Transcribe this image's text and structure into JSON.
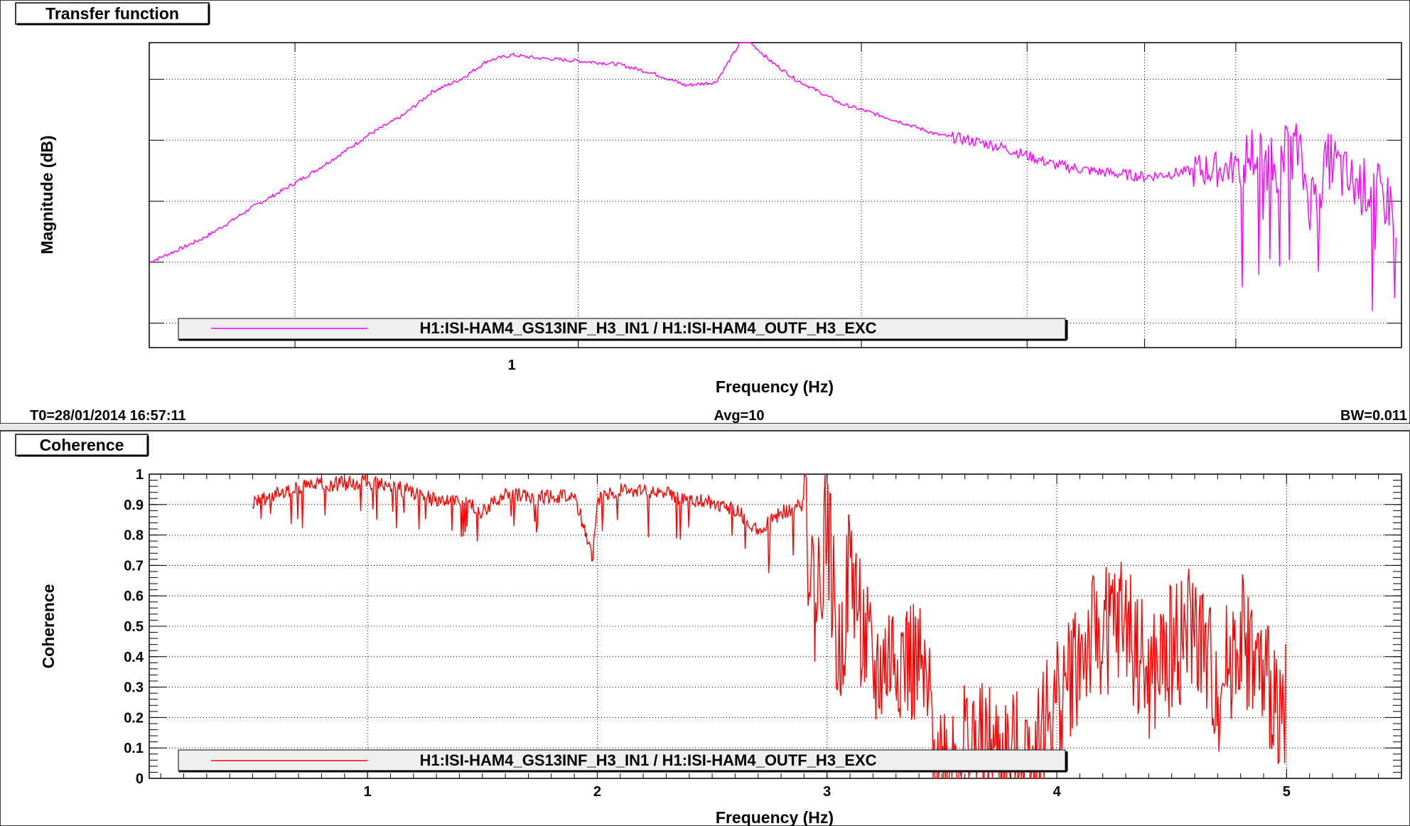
{
  "panels": {
    "top": {
      "tab_label": "Transfer function"
    },
    "bottom": {
      "tab_label": "Coherence"
    }
  },
  "status_bar": {
    "t0": "T0=28/01/2014 16:57:11",
    "avg": "Avg=10",
    "bw": "BW=0.011"
  },
  "chart_data": [
    {
      "type": "line",
      "title": "",
      "xlabel": "Frequency (Hz)",
      "ylabel": "Magnitude (dB)",
      "x_scale": "log",
      "xlim": [
        0.35,
        7.5
      ],
      "ylim": [
        -54,
        -4
      ],
      "x_tick_labels": [
        {
          "value": 1,
          "label": "1"
        }
      ],
      "y_tick_labels": [],
      "grid": true,
      "legend": "bottom-left",
      "series": [
        {
          "name": "H1:ISI-HAM4_GS13INF_H3_IN1 / H1:ISI-HAM4_OUTF_H3_EXC",
          "color": "#ff00ff",
          "x": [
            0.35,
            0.4,
            0.45,
            0.5,
            0.55,
            0.6,
            0.65,
            0.7,
            0.75,
            0.8,
            0.85,
            0.9,
            1.0,
            1.1,
            1.2,
            1.3,
            1.4,
            1.5,
            1.6,
            1.7,
            1.8,
            1.9,
            2.0,
            2.2,
            2.4,
            2.6,
            2.8,
            3.0,
            3.2,
            3.5,
            4.0,
            4.5,
            5.0,
            5.2,
            5.5,
            5.8,
            6.0,
            6.3,
            6.6,
            7.0,
            7.4
          ],
          "y": [
            -40,
            -36,
            -31,
            -27,
            -23,
            -19,
            -16,
            -12,
            -10,
            -7,
            -6,
            -6.5,
            -7,
            -7.5,
            -9,
            -11,
            -10.5,
            -3,
            -7,
            -10,
            -12,
            -14,
            -15,
            -17,
            -19,
            -20,
            -21,
            -22.5,
            -24,
            -25,
            -26,
            -25,
            -24.5,
            -22,
            -24,
            -21,
            -30,
            -23,
            -27,
            -28,
            -31
          ]
        }
      ]
    },
    {
      "type": "line",
      "title": "",
      "xlabel": "Frequency (Hz)",
      "ylabel": "Coherence",
      "xlim": [
        0.05,
        5.5
      ],
      "ylim": [
        0,
        1
      ],
      "x_tick_labels": [
        "1",
        "2",
        "3",
        "4",
        "5"
      ],
      "y_tick_labels": [
        "0",
        "0.1",
        "0.2",
        "0.3",
        "0.4",
        "0.5",
        "0.6",
        "0.7",
        "0.8",
        "0.9",
        "1"
      ],
      "grid": true,
      "legend": "bottom-left",
      "series": [
        {
          "name": "H1:ISI-HAM4_GS13INF_H3_IN1 / H1:ISI-HAM4_OUTF_H3_EXC",
          "color": "#ff0000",
          "x": [
            0.5,
            0.6,
            0.7,
            0.8,
            0.9,
            1.0,
            1.1,
            1.2,
            1.3,
            1.4,
            1.5,
            1.6,
            1.7,
            1.8,
            1.9,
            1.98,
            2.0,
            2.05,
            2.1,
            2.2,
            2.3,
            2.4,
            2.5,
            2.6,
            2.7,
            2.8,
            2.9,
            2.95,
            3.0,
            3.05,
            3.1,
            3.15,
            3.2,
            3.3,
            3.4,
            3.5,
            3.6,
            3.7,
            3.8,
            3.9,
            4.0,
            4.1,
            4.2,
            4.3,
            4.4,
            4.5,
            4.6,
            4.7,
            4.8,
            4.9,
            5.0
          ],
          "y": [
            0.93,
            0.96,
            0.98,
            0.99,
            0.995,
            1.0,
            0.99,
            0.96,
            0.94,
            0.95,
            0.9,
            0.96,
            0.95,
            0.95,
            0.96,
            0.75,
            0.94,
            0.96,
            0.97,
            0.97,
            0.96,
            0.94,
            0.93,
            0.91,
            0.84,
            0.9,
            0.92,
            0.55,
            0.88,
            0.35,
            0.72,
            0.5,
            0.32,
            0.42,
            0.35,
            0.05,
            0.12,
            0.08,
            0.05,
            0.1,
            0.25,
            0.4,
            0.48,
            0.52,
            0.3,
            0.42,
            0.5,
            0.28,
            0.48,
            0.3,
            0.25
          ]
        }
      ]
    }
  ]
}
